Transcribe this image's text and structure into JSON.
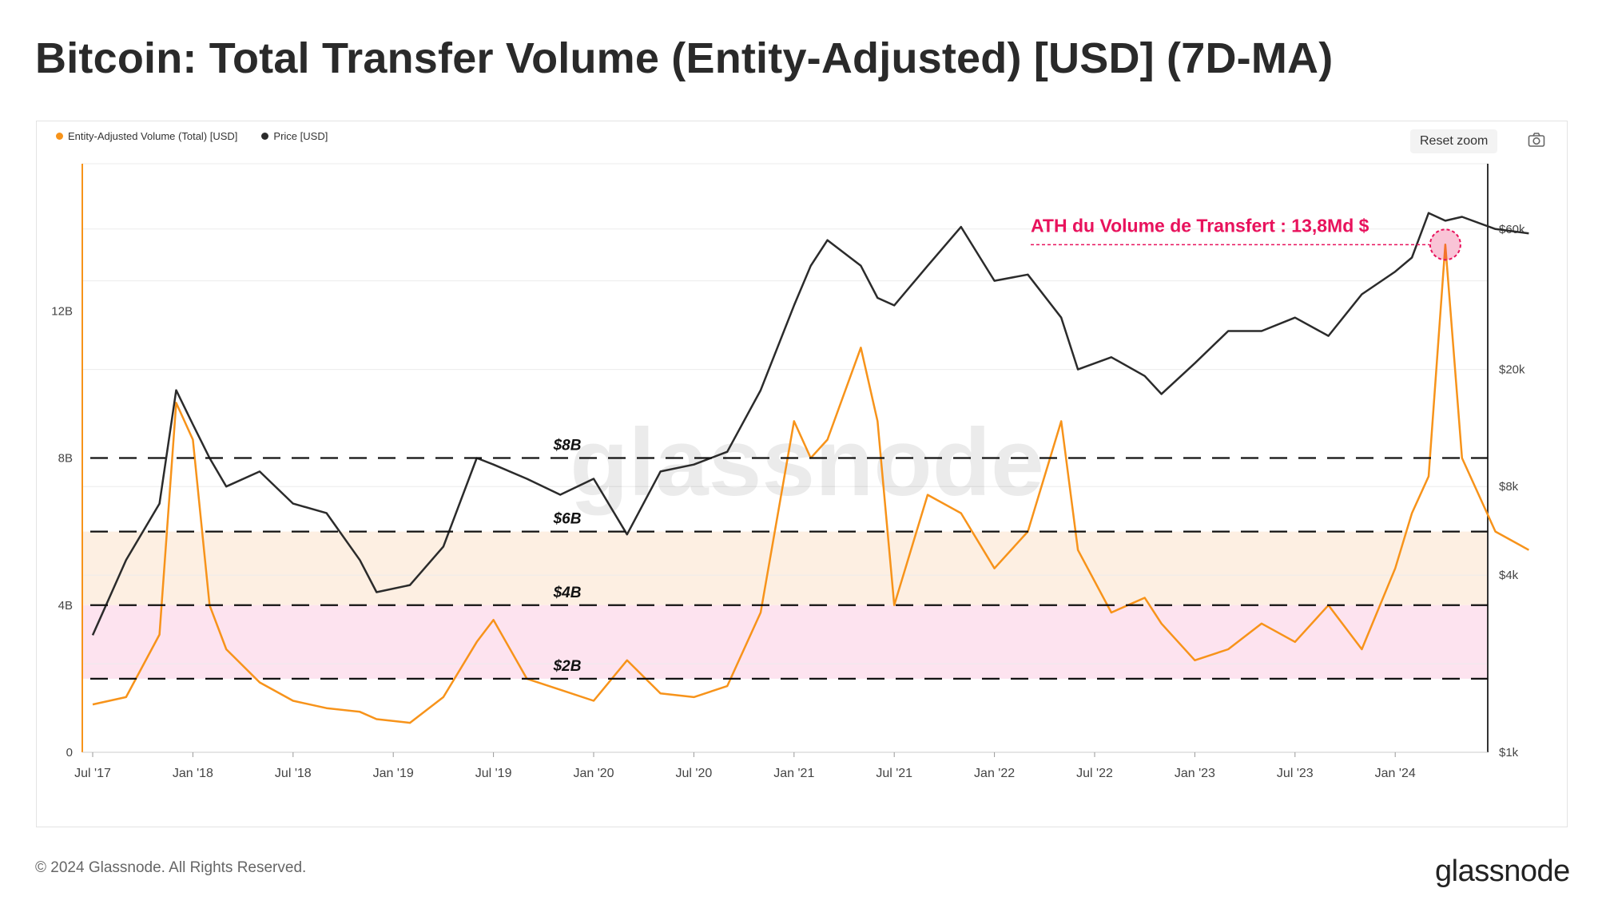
{
  "page_title": "Bitcoin: Total Transfer Volume (Entity-Adjusted) [USD] (7D-MA)",
  "reset_zoom_label": "Reset zoom",
  "footer": {
    "copyright": "© 2024 Glassnode. All Rights Reserved.",
    "logo": "glassnode"
  },
  "watermark": "glassnode",
  "colors": {
    "volume": "#f7931a",
    "price": "#2b2b2b",
    "annotation": "#e8125c",
    "band_orange": "#fdefe2",
    "band_pink": "#fde3ef"
  },
  "chart_data": {
    "type": "line",
    "title": "Bitcoin: Total Transfer Volume (Entity-Adjusted) [USD] (7D-MA)",
    "legend_position": "top-left",
    "grid": true,
    "x_ticks": [
      "Jul '17",
      "Jan '18",
      "Jul '18",
      "Jan '19",
      "Jul '19",
      "Jan '20",
      "Jul '20",
      "Jan '21",
      "Jul '21",
      "Jan '22",
      "Jul '22",
      "Jan '23",
      "Jul '23",
      "Jan '24"
    ],
    "x": [
      "2017-07",
      "2017-09",
      "2017-11",
      "2017-12",
      "2018-01",
      "2018-02",
      "2018-03",
      "2018-05",
      "2018-07",
      "2018-09",
      "2018-11",
      "2018-12",
      "2019-02",
      "2019-04",
      "2019-06",
      "2019-07",
      "2019-09",
      "2019-11",
      "2020-01",
      "2020-03",
      "2020-05",
      "2020-07",
      "2020-09",
      "2020-11",
      "2021-01",
      "2021-02",
      "2021-03",
      "2021-05",
      "2021-06",
      "2021-07",
      "2021-09",
      "2021-11",
      "2022-01",
      "2022-03",
      "2022-05",
      "2022-06",
      "2022-08",
      "2022-10",
      "2022-11",
      "2023-01",
      "2023-03",
      "2023-05",
      "2023-07",
      "2023-09",
      "2023-11",
      "2024-01",
      "2024-02",
      "2024-03",
      "2024-04",
      "2024-05",
      "2024-07",
      "2024-09"
    ],
    "y_left": {
      "label": "",
      "ticks": [
        "0",
        "4B",
        "8B",
        "12B"
      ],
      "ylim": [
        0,
        16000000000
      ]
    },
    "y_right": {
      "label": "",
      "scale": "log",
      "ticks": [
        "$1k",
        "$4k",
        "$8k",
        "$20k",
        "$60k"
      ],
      "ylim": [
        1000,
        100000
      ]
    },
    "series": [
      {
        "name": "Entity-Adjusted Volume (Total) [USD]",
        "axis": "left",
        "color": "#f7931a",
        "values": [
          1.3,
          1.5,
          3.2,
          9.5,
          8.5,
          4.0,
          2.8,
          1.9,
          1.4,
          1.2,
          1.1,
          0.9,
          0.8,
          1.5,
          3.0,
          3.6,
          2.0,
          1.7,
          1.4,
          2.5,
          1.6,
          1.5,
          1.8,
          3.8,
          9.0,
          8.0,
          8.5,
          11.0,
          9.0,
          4.0,
          7.0,
          6.5,
          5.0,
          6.0,
          9.0,
          5.5,
          3.8,
          4.2,
          3.5,
          2.5,
          2.8,
          3.5,
          3.0,
          4.0,
          2.8,
          5.0,
          6.5,
          7.5,
          13.8,
          8.0,
          6.0,
          5.5
        ]
      },
      {
        "name": "Price [USD]",
        "axis": "right",
        "color": "#2b2b2b",
        "values": [
          2500,
          4500,
          7000,
          17000,
          13000,
          10000,
          8000,
          9000,
          7000,
          6500,
          4500,
          3500,
          3700,
          5000,
          10000,
          9500,
          8500,
          7500,
          8500,
          5500,
          9000,
          9500,
          10500,
          17000,
          33000,
          45000,
          55000,
          45000,
          35000,
          33000,
          45000,
          61000,
          40000,
          42000,
          30000,
          20000,
          22000,
          19000,
          16500,
          21000,
          27000,
          27000,
          30000,
          26000,
          36000,
          43000,
          48000,
          68000,
          64000,
          66000,
          60000,
          58000
        ]
      }
    ],
    "bands": [
      {
        "from": 4000000000,
        "to": 6000000000,
        "color": "#fdefe2"
      },
      {
        "from": 2000000000,
        "to": 4000000000,
        "color": "#fde3ef"
      }
    ],
    "reference_lines": [
      {
        "value": 8000000000,
        "label": "$8B"
      },
      {
        "value": 6000000000,
        "label": "$6B"
      },
      {
        "value": 4000000000,
        "label": "$4B"
      },
      {
        "value": 2000000000,
        "label": "$2B"
      }
    ],
    "annotation": {
      "text": "ATH du Volume de Transfert : 13,8Md $",
      "x": "2024-04",
      "y": 13800000000
    }
  }
}
